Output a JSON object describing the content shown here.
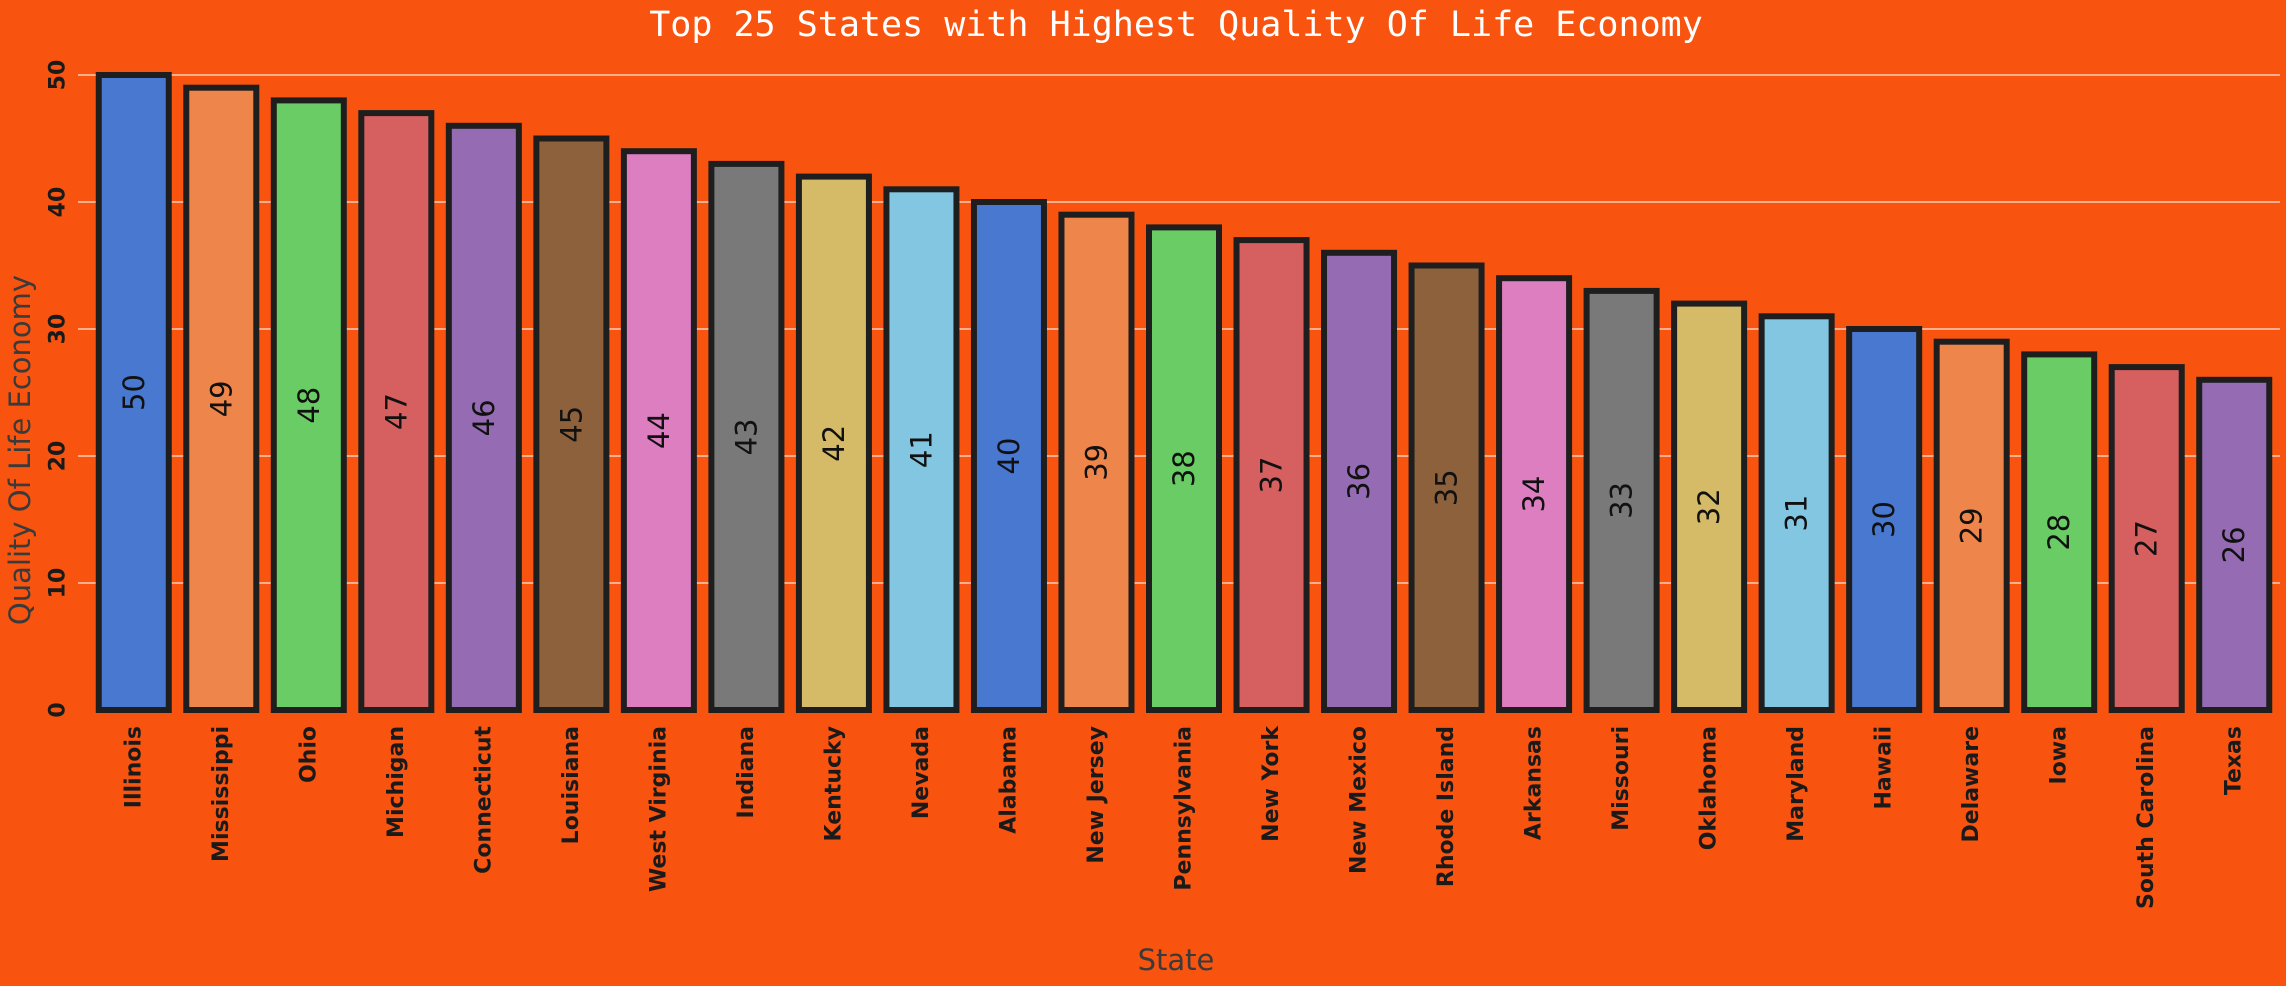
{
  "chart_data": {
    "type": "bar",
    "title": "Top 25 States with Highest Quality Of Life Economy",
    "xlabel": "State",
    "ylabel": "Quality Of Life Economy",
    "categories": [
      "Illinois",
      "Mississippi",
      "Ohio",
      "Michigan",
      "Connecticut",
      "Louisiana",
      "West Virginia",
      "Indiana",
      "Kentucky",
      "Nevada",
      "Alabama",
      "New Jersey",
      "Pennsylvania",
      "New York",
      "New Mexico",
      "Rhode Island",
      "Arkansas",
      "Missouri",
      "Oklahoma",
      "Maryland",
      "Hawaii",
      "Delaware",
      "Iowa",
      "South Carolina",
      "Texas"
    ],
    "values": [
      50,
      49,
      48,
      47,
      46,
      45,
      44,
      43,
      42,
      41,
      40,
      39,
      38,
      37,
      36,
      35,
      34,
      33,
      32,
      31,
      30,
      29,
      28,
      27,
      26
    ],
    "ylim": [
      0,
      50
    ],
    "yticks": [
      0,
      10,
      20,
      30,
      40,
      50
    ],
    "grid": "horizontal",
    "legend": "none",
    "bar_colors": [
      "#4878d0",
      "#ee854a",
      "#6acc64",
      "#d65f5f",
      "#956cb4",
      "#8c613c",
      "#dc7ec0",
      "#797979",
      "#d5bb67",
      "#82c6e2"
    ],
    "background_color": "#f8540f"
  }
}
